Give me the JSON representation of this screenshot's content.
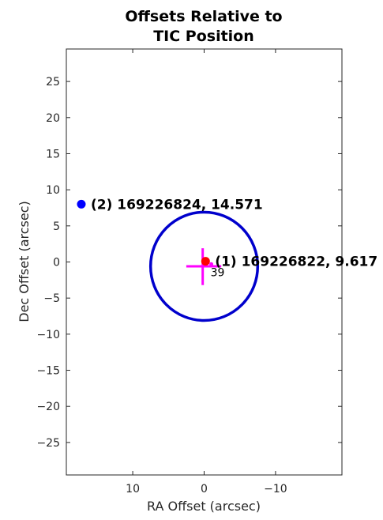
{
  "chart_data": {
    "type": "scatter",
    "title": [
      "Offsets Relative to",
      "TIC Position"
    ],
    "xlabel": "RA Offset (arcsec)",
    "ylabel": "Dec Offset (arcsec)",
    "xlim": [
      19.3,
      -19.3
    ],
    "ylim": [
      -29.5,
      29.5
    ],
    "x_reversed": true,
    "xticks": [
      10,
      0,
      -10
    ],
    "xtick_labels": [
      "10",
      "0",
      "−10"
    ],
    "yticks": [
      25,
      20,
      15,
      10,
      5,
      0,
      -5,
      -10,
      -15,
      -20,
      -25
    ],
    "ytick_labels": [
      "25",
      "20",
      "15",
      "10",
      "5",
      "0",
      "−5",
      "−10",
      "−15",
      "−20",
      "−25"
    ],
    "grid": false,
    "points": [
      {
        "x": -0.2,
        "y": 0.1,
        "color": "#ff0000",
        "label": "(1) 169226822, 9.617"
      },
      {
        "x": 17.2,
        "y": 8.0,
        "color": "#0000ff",
        "label": "(2) 169226824, 14.571"
      }
    ],
    "circle": {
      "cx": 0.0,
      "cy": -0.6,
      "r": 7.5,
      "color": "#0000cc"
    },
    "crosshair": {
      "color": "#ff00ff",
      "h_segment": [
        [
          2.5,
          -0.6
        ],
        [
          -2.4,
          -0.6
        ]
      ],
      "v_segment": [
        [
          0.2,
          1.9
        ],
        [
          0.2,
          -3.2
        ]
      ]
    },
    "centroid": {
      "x": -1.0,
      "y": -0.3,
      "color": "#ff00ff"
    },
    "small_annotation": {
      "text": "39",
      "x": -0.9,
      "y": -0.9
    }
  }
}
